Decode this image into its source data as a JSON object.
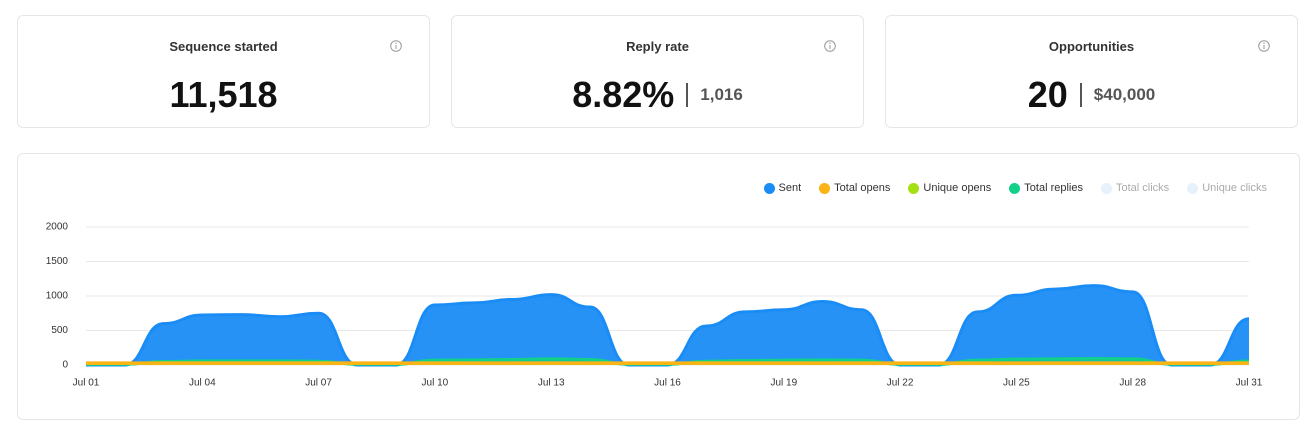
{
  "cards": [
    {
      "title": "Sequence started",
      "value": "11,518"
    },
    {
      "title": "Reply rate",
      "value": "8.82%",
      "secondary": "1,016"
    },
    {
      "title": "Opportunities",
      "value": "20",
      "secondary": "$40,000"
    }
  ],
  "chart_data": {
    "type": "area",
    "categories": [
      "Jul 01",
      null,
      null,
      "Jul 04",
      null,
      null,
      "Jul 07",
      null,
      null,
      "Jul 10",
      null,
      null,
      "Jul 13",
      null,
      null,
      "Jul 16",
      null,
      null,
      "Jul 19",
      null,
      null,
      "Jul 22",
      null,
      null,
      "Jul 25",
      null,
      null,
      "Jul 28",
      null,
      null,
      "Jul 31"
    ],
    "series": [
      {
        "name": "Sent",
        "color": "#1a8cf5",
        "values": [
          0,
          0,
          600,
          725,
          730,
          700,
          750,
          0,
          0,
          870,
          900,
          950,
          1020,
          840,
          0,
          0,
          565,
          770,
          800,
          920,
          800,
          0,
          0,
          770,
          1010,
          1100,
          1150,
          1060,
          0,
          0,
          670
        ]
      },
      {
        "name": "Total opens",
        "color": "#fbb315",
        "values": [
          30,
          30,
          30,
          30,
          30,
          30,
          30,
          30,
          30,
          30,
          30,
          30,
          30,
          30,
          30,
          30,
          30,
          30,
          30,
          30,
          30,
          30,
          30,
          30,
          30,
          30,
          30,
          30,
          30,
          30,
          30
        ]
      },
      {
        "name": "Unique opens",
        "color": "#a4e014",
        "values": [
          25,
          25,
          25,
          25,
          25,
          25,
          25,
          25,
          25,
          25,
          25,
          25,
          25,
          25,
          25,
          25,
          25,
          25,
          25,
          25,
          25,
          25,
          25,
          25,
          25,
          25,
          25,
          25,
          25,
          25,
          25
        ]
      },
      {
        "name": "Total replies",
        "color": "#10d08a",
        "values": [
          10,
          10,
          50,
          60,
          60,
          60,
          55,
          10,
          10,
          70,
          75,
          80,
          90,
          80,
          10,
          10,
          55,
          65,
          70,
          75,
          70,
          10,
          10,
          70,
          85,
          90,
          95,
          90,
          10,
          10,
          60
        ]
      }
    ],
    "hidden_series": [
      {
        "name": "Total clicks",
        "color": "#e6f1fb"
      },
      {
        "name": "Unique clicks",
        "color": "#e6f1fb"
      }
    ],
    "ylim": [
      0,
      2000
    ],
    "yticks": [
      0,
      500,
      1000,
      1500,
      2000
    ],
    "grid": true,
    "legend": "top-right"
  }
}
